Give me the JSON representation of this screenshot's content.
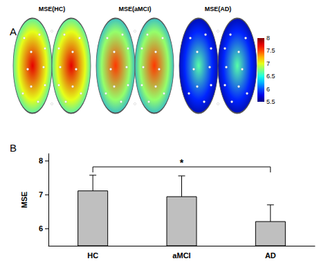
{
  "chart_data": [
    {
      "type": "brain_map",
      "label": "A",
      "maps": [
        {
          "title": "MSE(HC)",
          "value": 7.0
        },
        {
          "title": "MSE(aMCI)",
          "value": 6.8
        },
        {
          "title": "MSE(AD)",
          "value": 5.9
        }
      ],
      "colorbar": {
        "range": [
          5.5,
          8
        ],
        "ticks": [
          5.5,
          6,
          6.5,
          7,
          7.5,
          8
        ]
      }
    },
    {
      "type": "bar",
      "label": "B",
      "categories": [
        "HC",
        "aMCI",
        "AD"
      ],
      "values": [
        7.12,
        6.95,
        6.22
      ],
      "errors": [
        0.45,
        0.6,
        0.48
      ],
      "ylabel": "MSE",
      "ylim": [
        5.5,
        8.2
      ],
      "yticks": [
        6,
        7,
        8
      ],
      "color": "#bfbfbf",
      "grid": false,
      "annotation": {
        "from": "HC",
        "to": "AD",
        "text": "*"
      }
    }
  ]
}
